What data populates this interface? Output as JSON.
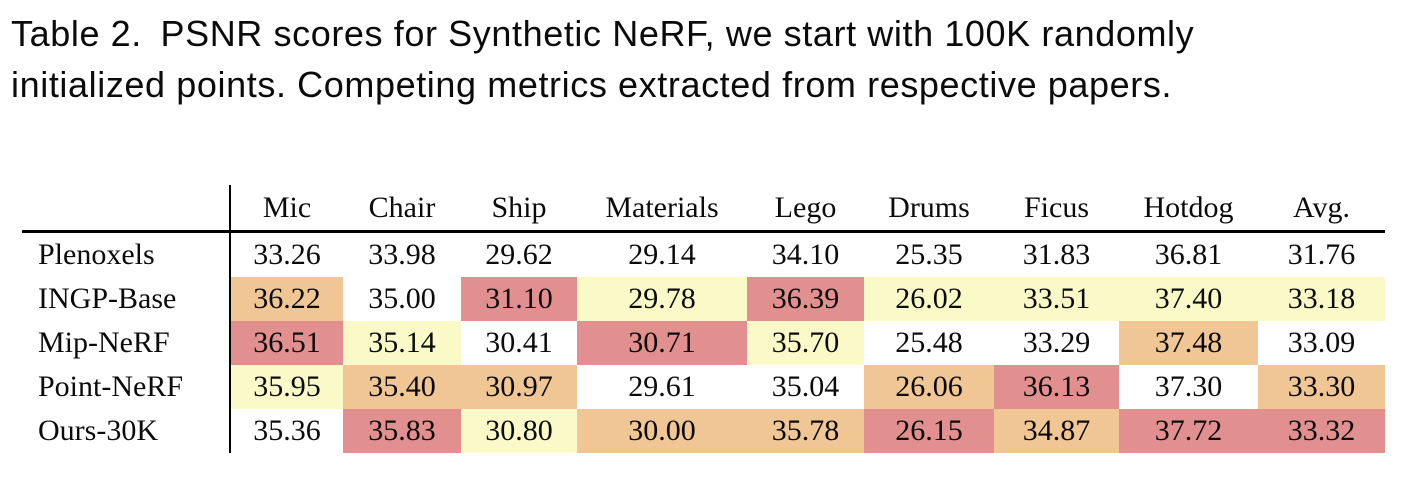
{
  "caption": {
    "lines": [
      "Table 2. PSNR scores for Synthetic NeRF, we start with 100K randomly",
      "initialized points. Competing metrics extracted from respective papers."
    ]
  },
  "table": {
    "columns": [
      "Mic",
      "Chair",
      "Ship",
      "Materials",
      "Lego",
      "Drums",
      "Ficus",
      "Hotdog",
      "Avg."
    ],
    "rows": [
      {
        "label": "Plenoxels",
        "values": [
          "33.26",
          "33.98",
          "29.62",
          "29.14",
          "34.10",
          "25.35",
          "31.83",
          "36.81",
          "31.76"
        ],
        "ranks": [
          null,
          null,
          null,
          null,
          null,
          null,
          null,
          null,
          null
        ]
      },
      {
        "label": "INGP-Base",
        "values": [
          "36.22",
          "35.00",
          "31.10",
          "29.78",
          "36.39",
          "26.02",
          "33.51",
          "37.40",
          "33.18"
        ],
        "ranks": [
          "second",
          null,
          "first",
          "third",
          "first",
          "third",
          "third",
          "third",
          "third"
        ]
      },
      {
        "label": "Mip-NeRF",
        "values": [
          "36.51",
          "35.14",
          "30.41",
          "30.71",
          "35.70",
          "25.48",
          "33.29",
          "37.48",
          "33.09"
        ],
        "ranks": [
          "first",
          "third",
          null,
          "first",
          "third",
          null,
          null,
          "second",
          null
        ]
      },
      {
        "label": "Point-NeRF",
        "values": [
          "35.95",
          "35.40",
          "30.97",
          "29.61",
          "35.04",
          "26.06",
          "36.13",
          "37.30",
          "33.30"
        ],
        "ranks": [
          "third",
          "second",
          "second",
          null,
          null,
          "second",
          "first",
          null,
          "second"
        ]
      },
      {
        "label": "Ours-30K",
        "values": [
          "35.36",
          "35.83",
          "30.80",
          "30.00",
          "35.78",
          "26.15",
          "34.87",
          "37.72",
          "33.32"
        ],
        "ranks": [
          null,
          "first",
          "third",
          "second",
          "second",
          "first",
          "second",
          "first",
          "first"
        ]
      }
    ],
    "rank_colors": {
      "first": "#e2908f",
      "second": "#f0c695",
      "third": "#fafac8"
    }
  }
}
